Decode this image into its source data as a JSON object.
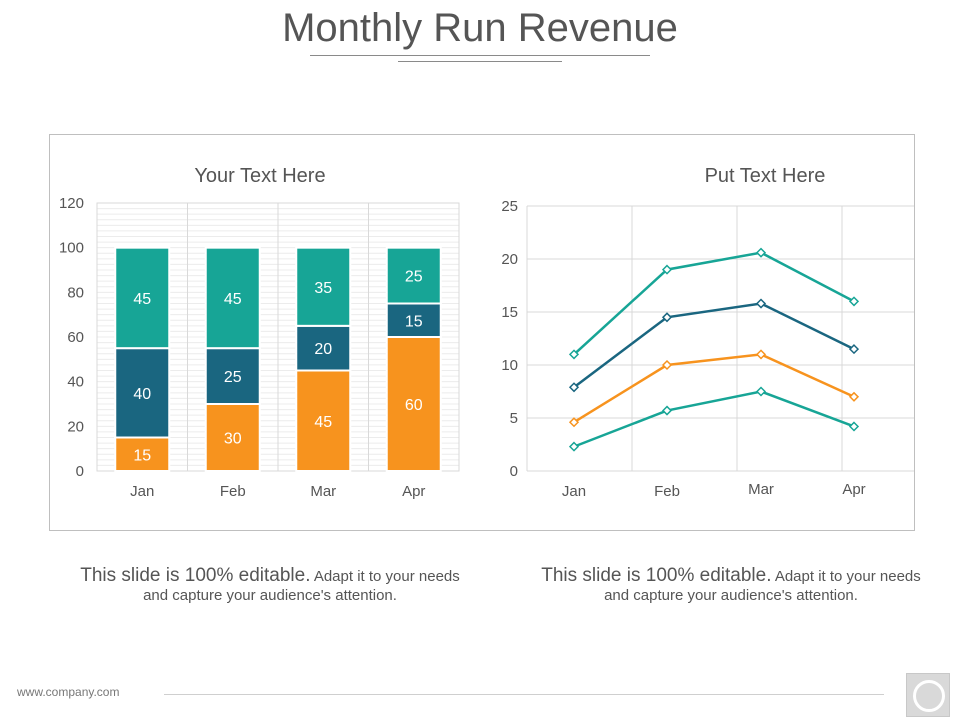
{
  "title": "Monthly Run Revenue",
  "colors": {
    "teal": "#17a596",
    "navy": "#1a6680",
    "orange": "#f7931e"
  },
  "chart_data": [
    {
      "type": "bar",
      "stacked": true,
      "title": "Your Text Here",
      "categories": [
        "Jan",
        "Feb",
        "Mar",
        "Apr"
      ],
      "series": [
        {
          "values": [
            15,
            30,
            45,
            60
          ],
          "color": "#f7931e"
        },
        {
          "values": [
            40,
            25,
            20,
            15
          ],
          "color": "#1a6680"
        },
        {
          "values": [
            45,
            45,
            35,
            25
          ],
          "color": "#17a596"
        }
      ],
      "ylim": [
        0,
        120
      ],
      "yticks": [
        0,
        20,
        40,
        60,
        80,
        100,
        120
      ],
      "grid": true
    },
    {
      "type": "line",
      "title": "Put Text Here",
      "categories": [
        "Jan",
        "Feb",
        "Mar",
        "Apr"
      ],
      "series": [
        {
          "values": [
            11,
            19,
            20.6,
            16
          ],
          "color": "#17a596"
        },
        {
          "values": [
            7.9,
            14.5,
            15.8,
            11.5
          ],
          "color": "#1a6680"
        },
        {
          "values": [
            4.6,
            10,
            11,
            7
          ],
          "color": "#f7931e"
        },
        {
          "values": [
            2.3,
            5.7,
            7.5,
            4.2
          ],
          "color": "#17a596"
        }
      ],
      "ylim": [
        0,
        25
      ],
      "yticks": [
        0,
        5,
        10,
        15,
        20,
        25
      ],
      "grid": true,
      "markers": "diamond"
    }
  ],
  "captions": [
    {
      "big": "This slide is 100% editable.",
      "small": " Adapt it to your needs and capture your audience's attention."
    },
    {
      "big": "This slide is 100% editable.",
      "small": " Adapt it to your needs and capture your audience's attention."
    }
  ],
  "footer": {
    "url": "www.company.com",
    "button_icon": "circle-icon"
  }
}
